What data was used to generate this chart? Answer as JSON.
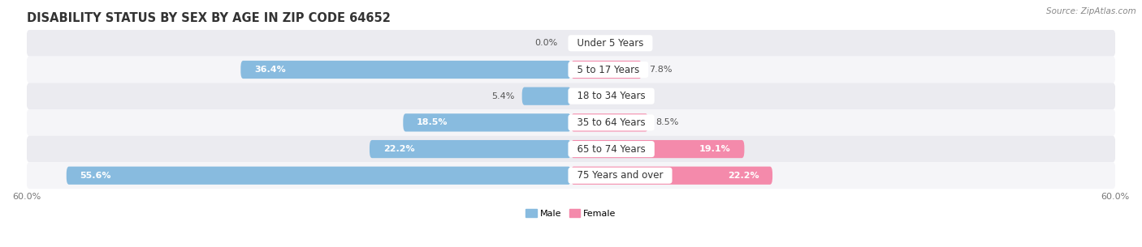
{
  "title": "DISABILITY STATUS BY SEX BY AGE IN ZIP CODE 64652",
  "source": "Source: ZipAtlas.com",
  "categories": [
    "Under 5 Years",
    "5 to 17 Years",
    "18 to 34 Years",
    "35 to 64 Years",
    "65 to 74 Years",
    "75 Years and over"
  ],
  "male_values": [
    0.0,
    36.4,
    5.4,
    18.5,
    22.2,
    55.6
  ],
  "female_values": [
    0.0,
    7.8,
    0.0,
    8.5,
    19.1,
    22.2
  ],
  "male_color": "#88bbdf",
  "female_color": "#f48aab",
  "row_colors": [
    "#ebebf0",
    "#f5f5f8",
    "#ebebf0",
    "#f5f5f8",
    "#ebebf0",
    "#f5f5f8"
  ],
  "max_val": 60.0,
  "title_fontsize": 10.5,
  "label_fontsize": 8.0,
  "category_fontsize": 8.5,
  "source_fontsize": 7.5
}
